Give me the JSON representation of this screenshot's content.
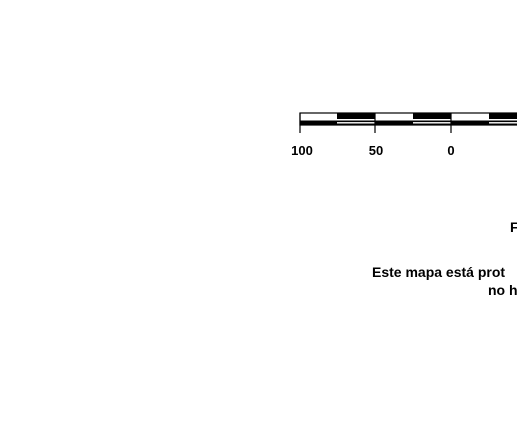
{
  "scale_bar": {
    "tick_labels": [
      "100",
      "50",
      "0"
    ],
    "units": ""
  },
  "notes": {
    "heading_fragment": "F",
    "line1": "Este mapa está prot",
    "line2": "no h"
  },
  "colors": {
    "ink": "#000000",
    "background": "#ffffff"
  }
}
